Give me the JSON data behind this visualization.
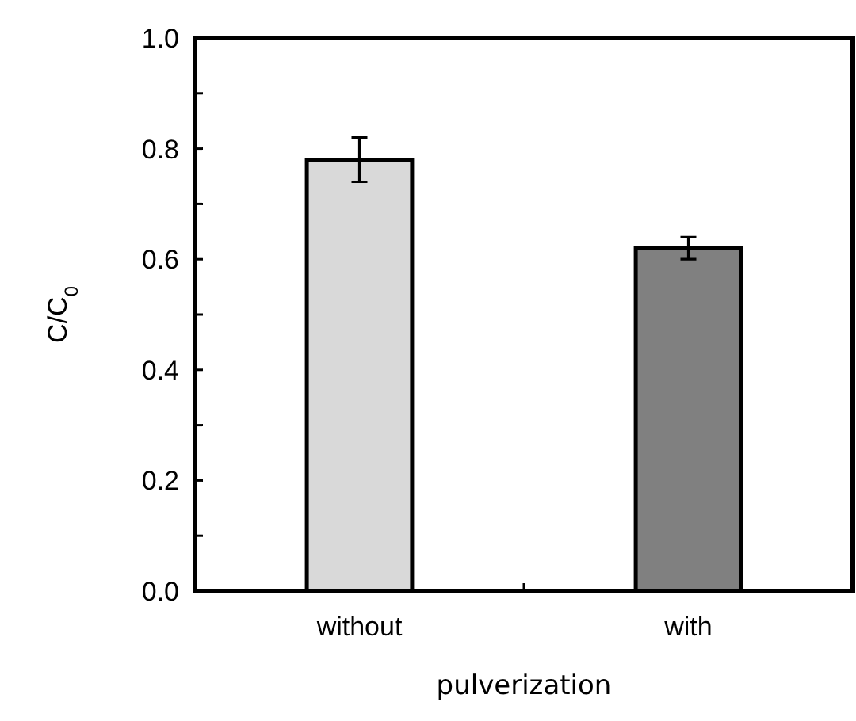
{
  "chart_data": {
    "type": "bar",
    "xlabel": "pulverization",
    "ylabel": "C/C$_{0}$",
    "categories": [
      "without",
      "with"
    ],
    "values": [
      0.78,
      0.62
    ],
    "colors": [
      "#d9d9d9",
      "#808080"
    ],
    "errors": [
      0.04,
      0.02
    ],
    "ylim": [
      0,
      1.0
    ],
    "yticks": [
      {
        "value": 0,
        "label": "0.0"
      },
      {
        "value": 0.1,
        "label": null
      },
      {
        "value": 0.2,
        "label": "0.2"
      },
      {
        "value": 0.3,
        "label": null
      },
      {
        "value": 0.4,
        "label": "0.4"
      },
      {
        "value": 0.5,
        "label": null
      },
      {
        "value": 0.6,
        "label": "0.6"
      },
      {
        "value": 0.7,
        "label": null
      },
      {
        "value": 0.8,
        "label": "0.8"
      },
      {
        "value": 0.9,
        "label": null
      },
      {
        "value": 1.0,
        "label": "1.0"
      }
    ],
    "grid": false
  }
}
